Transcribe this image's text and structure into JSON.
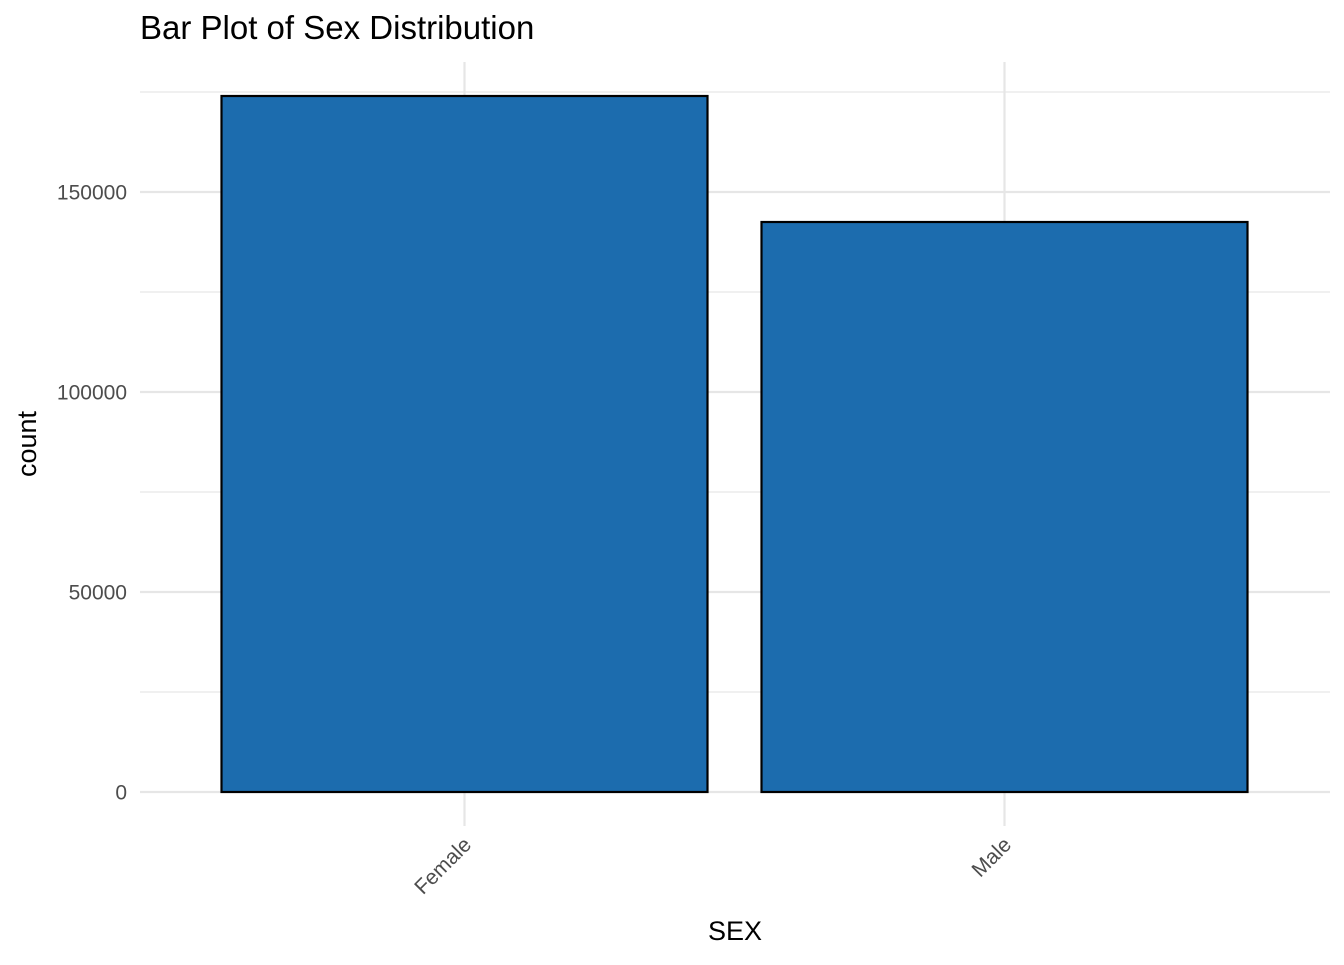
{
  "chart_data": {
    "type": "bar",
    "title": "Bar Plot of Sex Distribution",
    "xlabel": "SEX",
    "ylabel": "count",
    "categories": [
      "Female",
      "Male"
    ],
    "values": [
      174000,
      142500
    ],
    "ylim": [
      0,
      180000
    ],
    "yticks": [
      "0",
      "50000",
      "100000",
      "150000"
    ],
    "grid": true,
    "legend": "none",
    "colors": {
      "bar_fill": "#1c6cae",
      "bar_outline": "#000000",
      "grid": "#e6e6e6",
      "tick_text": "#4d4d4d"
    }
  }
}
